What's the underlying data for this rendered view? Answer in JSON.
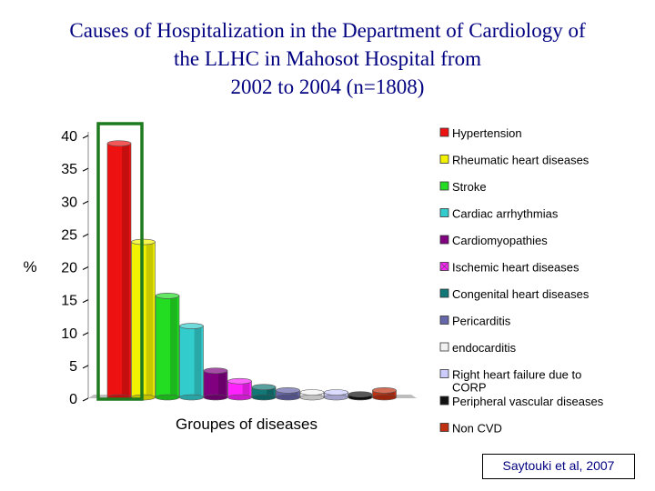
{
  "title_lines": [
    "Causes of Hospitalization in the Department of Cardiology of",
    "the LLHC in Mahosot Hospital from",
    "2002 to 2004 (n=1808)"
  ],
  "citation": "Saytouki et al, 2007",
  "colors": {
    "title": "#000080",
    "highlight_box": "#1e7a1e"
  },
  "chart_data": {
    "type": "bar",
    "title": "Causes of Hospitalization in the Department of Cardiology of the LLHC in Mahosot Hospital from 2002 to 2004 (n=1808)",
    "xlabel": "Groupes of diseases",
    "ylabel": "%",
    "ylim": [
      0,
      40
    ],
    "yticks": [
      0,
      5,
      10,
      15,
      20,
      25,
      30,
      35,
      40
    ],
    "legend_position": "right",
    "highlighted_category": "Hypertension",
    "categories": [
      "Hypertension",
      "Rheumatic heart diseases",
      "Stroke",
      "Cardiac arrhythmias",
      "Cardiomyopathies",
      "Ischemic heart diseases",
      "Congenital heart diseases",
      "Pericarditis",
      "endocarditis",
      "Right heart failure due to CORP",
      "Peripheral vascular diseases",
      "Non CVD"
    ],
    "legend_lines": [
      [
        "Hypertension"
      ],
      [
        "Rheumatic heart diseases"
      ],
      [
        "Stroke"
      ],
      [
        "Cardiac arrhythmias"
      ],
      [
        "Cardiomyopathies"
      ],
      [
        "Ischemic heart diseases"
      ],
      [
        "Congenital heart diseases"
      ],
      [
        "Pericarditis"
      ],
      [
        "endocarditis"
      ],
      [
        "Right heart failure due to",
        "CORP"
      ],
      [
        "Peripheral vascular diseases"
      ],
      [
        "Non CVD"
      ]
    ],
    "values": [
      38.8,
      23.8,
      15.6,
      11.0,
      4.2,
      2.6,
      1.7,
      1.2,
      0.9,
      0.9,
      0.6,
      1.2
    ],
    "colors": [
      "#ee1111",
      "#f2f200",
      "#22dd22",
      "#33cccc",
      "#800080",
      "#ff22ff",
      "#117777",
      "#6666aa",
      "#f2f2f2",
      "#ccccff",
      "#111111",
      "#c03010"
    ]
  }
}
